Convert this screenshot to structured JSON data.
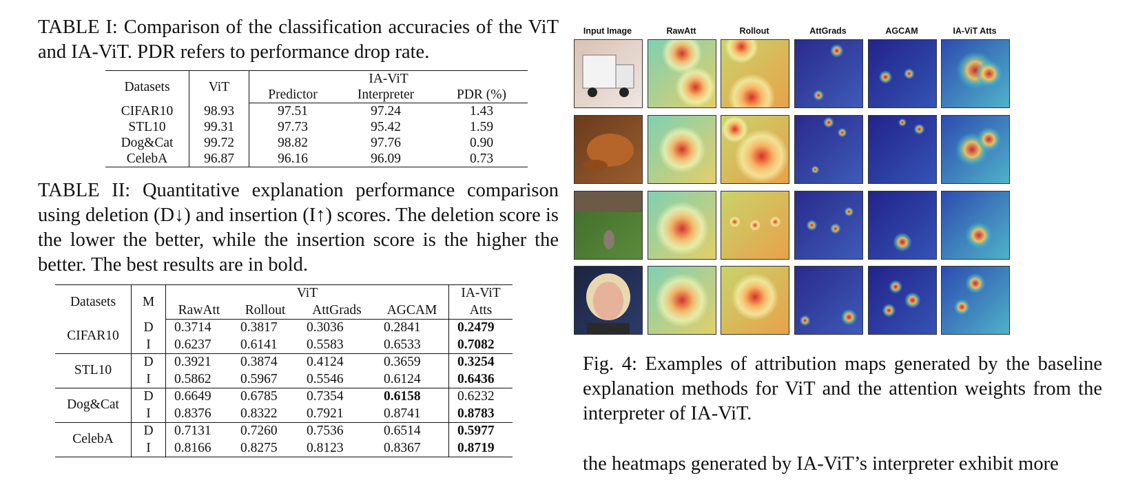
{
  "table1": {
    "caption": "TABLE I: Comparison of the classification accuracies of the ViT and IA-ViT. PDR refers to performance drop rate.",
    "headers": {
      "datasets": "Datasets",
      "vit": "ViT",
      "iavit": "IA-ViT",
      "predictor": "Predictor",
      "interpreter": "Interpreter",
      "pdr": "PDR (%)"
    },
    "rows": [
      {
        "dataset": "CIFAR10",
        "vit": "98.93",
        "predictor": "97.51",
        "interpreter": "97.24",
        "pdr": "1.43"
      },
      {
        "dataset": "STL10",
        "vit": "99.31",
        "predictor": "97.73",
        "interpreter": "95.42",
        "pdr": "1.59"
      },
      {
        "dataset": "Dog&Cat",
        "vit": "99.72",
        "predictor": "98.82",
        "interpreter": "97.76",
        "pdr": "0.90"
      },
      {
        "dataset": "CelebA",
        "vit": "96.87",
        "predictor": "96.16",
        "interpreter": "96.09",
        "pdr": "0.73"
      }
    ]
  },
  "table2": {
    "caption": "TABLE II: Quantitative explanation performance comparison using deletion (D↓) and insertion (I↑) scores. The deletion score is the lower the better, while the insertion score is the higher the better. The best results are in bold.",
    "headers": {
      "datasets": "Datasets",
      "m": "M",
      "vit": "ViT",
      "rawatt": "RawAtt",
      "rollout": "Rollout",
      "attgrads": "AttGrads",
      "agcam": "AGCAM",
      "iavit_line1": "IA-ViT",
      "iavit_line2": "Atts"
    },
    "groups": [
      {
        "dataset": "CIFAR10",
        "rows": [
          {
            "m": "D",
            "rawatt": "0.3714",
            "rollout": "0.3817",
            "attgrads": "0.3036",
            "agcam": "0.2841",
            "iavit": "0.2479"
          },
          {
            "m": "I",
            "rawatt": "0.6237",
            "rollout": "0.6141",
            "attgrads": "0.5583",
            "agcam": "0.6533",
            "iavit": "0.7082"
          }
        ]
      },
      {
        "dataset": "STL10",
        "rows": [
          {
            "m": "D",
            "rawatt": "0.3921",
            "rollout": "0.3874",
            "attgrads": "0.4124",
            "agcam": "0.3659",
            "iavit": "0.3254"
          },
          {
            "m": "I",
            "rawatt": "0.5862",
            "rollout": "0.5967",
            "attgrads": "0.5546",
            "agcam": "0.6124",
            "iavit": "0.6436"
          }
        ]
      },
      {
        "dataset": "Dog&Cat",
        "rows": [
          {
            "m": "D",
            "rawatt": "0.6649",
            "rollout": "0.6785",
            "attgrads": "0.7354",
            "agcam": "0.6158",
            "iavit": "0.6232"
          },
          {
            "m": "I",
            "rawatt": "0.8376",
            "rollout": "0.8322",
            "attgrads": "0.7921",
            "agcam": "0.8741",
            "iavit": "0.8783"
          }
        ]
      },
      {
        "dataset": "CelebA",
        "rows": [
          {
            "m": "D",
            "rawatt": "0.7131",
            "rollout": "0.7260",
            "attgrads": "0.7536",
            "agcam": "0.6514",
            "iavit": "0.5977"
          },
          {
            "m": "I",
            "rawatt": "0.8166",
            "rollout": "0.8275",
            "attgrads": "0.8123",
            "agcam": "0.8367",
            "iavit": "0.8719"
          }
        ]
      }
    ],
    "bold_cells": [
      "0.0.iavit",
      "0.1.iavit",
      "1.0.iavit",
      "1.1.iavit",
      "2.0.agcam",
      "2.1.iavit",
      "3.0.iavit",
      "3.1.iavit"
    ]
  },
  "figure": {
    "columns": [
      "Input Image",
      "RawAtt",
      "Rollout",
      "AttGrads",
      "AGCAM",
      "IA-ViT Atts"
    ],
    "row_subjects": [
      "truck",
      "frog",
      "dog",
      "face"
    ],
    "caption": "Fig. 4: Examples of attribution maps generated by the baseline explanation methods for ViT and the attention weights from the interpreter of IA-ViT."
  },
  "body_text": "the heatmaps generated by IA-ViT’s interpreter exhibit more"
}
